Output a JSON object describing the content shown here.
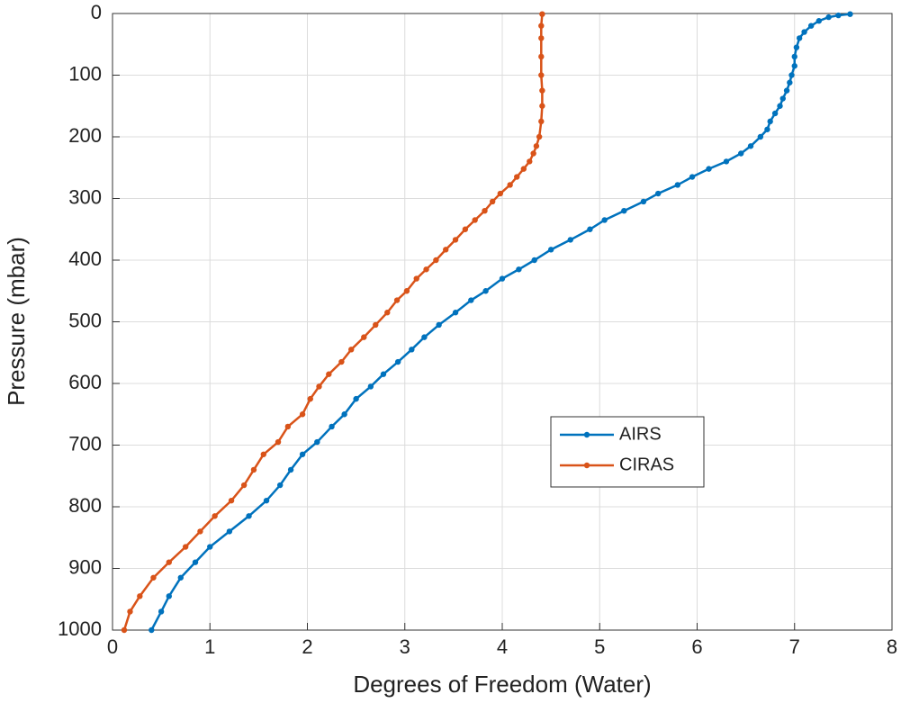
{
  "chart_data": {
    "type": "line",
    "xlabel": "Degrees of Freedom (Water)",
    "ylabel": "Pressure (mbar)",
    "xlim": [
      0,
      8
    ],
    "xticks": [
      0,
      1,
      2,
      3,
      4,
      5,
      6,
      7,
      8
    ],
    "ylim": [
      0,
      1000
    ],
    "yticks": [
      0,
      100,
      200,
      300,
      400,
      500,
      600,
      700,
      800,
      900,
      1000
    ],
    "y_reversed": true,
    "grid": true,
    "series": [
      {
        "name": "AIRS",
        "color": "#0072bd",
        "x": [
          0.4,
          0.5,
          0.58,
          0.7,
          0.85,
          1.0,
          1.2,
          1.4,
          1.58,
          1.72,
          1.83,
          1.95,
          2.1,
          2.25,
          2.38,
          2.5,
          2.65,
          2.78,
          2.93,
          3.07,
          3.2,
          3.35,
          3.52,
          3.68,
          3.83,
          4.0,
          4.17,
          4.33,
          4.5,
          4.7,
          4.9,
          5.05,
          5.25,
          5.45,
          5.6,
          5.8,
          5.95,
          6.12,
          6.3,
          6.45,
          6.55,
          6.65,
          6.72,
          6.75,
          6.8,
          6.85,
          6.88,
          6.92,
          6.95,
          6.97,
          7.0,
          7.0,
          7.02,
          7.05,
          7.1,
          7.17,
          7.25,
          7.35,
          7.45,
          7.57
        ],
        "values": [
          1000,
          970,
          945,
          915,
          890,
          865,
          840,
          815,
          790,
          765,
          740,
          715,
          695,
          670,
          650,
          625,
          605,
          585,
          565,
          545,
          525,
          505,
          485,
          465,
          450,
          430,
          415,
          400,
          383,
          367,
          350,
          335,
          320,
          305,
          292,
          278,
          265,
          252,
          240,
          227,
          215,
          200,
          188,
          175,
          162,
          150,
          138,
          125,
          112,
          100,
          85,
          70,
          55,
          40,
          30,
          20,
          12,
          6,
          3,
          1
        ]
      },
      {
        "name": "CIRAS",
        "color": "#d95319",
        "x": [
          0.12,
          0.18,
          0.28,
          0.42,
          0.58,
          0.75,
          0.9,
          1.05,
          1.22,
          1.35,
          1.45,
          1.55,
          1.7,
          1.8,
          1.95,
          2.03,
          2.12,
          2.22,
          2.35,
          2.45,
          2.58,
          2.7,
          2.82,
          2.92,
          3.02,
          3.12,
          3.22,
          3.32,
          3.42,
          3.52,
          3.62,
          3.72,
          3.82,
          3.9,
          3.98,
          4.08,
          4.15,
          4.22,
          4.28,
          4.32,
          4.35,
          4.38,
          4.4,
          4.41,
          4.41,
          4.4,
          4.4,
          4.4,
          4.4,
          4.41
        ],
        "values": [
          1000,
          970,
          945,
          915,
          890,
          865,
          840,
          815,
          790,
          765,
          740,
          715,
          695,
          670,
          650,
          625,
          605,
          585,
          565,
          545,
          525,
          505,
          485,
          465,
          450,
          430,
          415,
          400,
          383,
          367,
          350,
          335,
          320,
          305,
          292,
          278,
          265,
          252,
          240,
          227,
          215,
          200,
          175,
          150,
          125,
          100,
          70,
          40,
          20,
          1
        ]
      }
    ]
  }
}
